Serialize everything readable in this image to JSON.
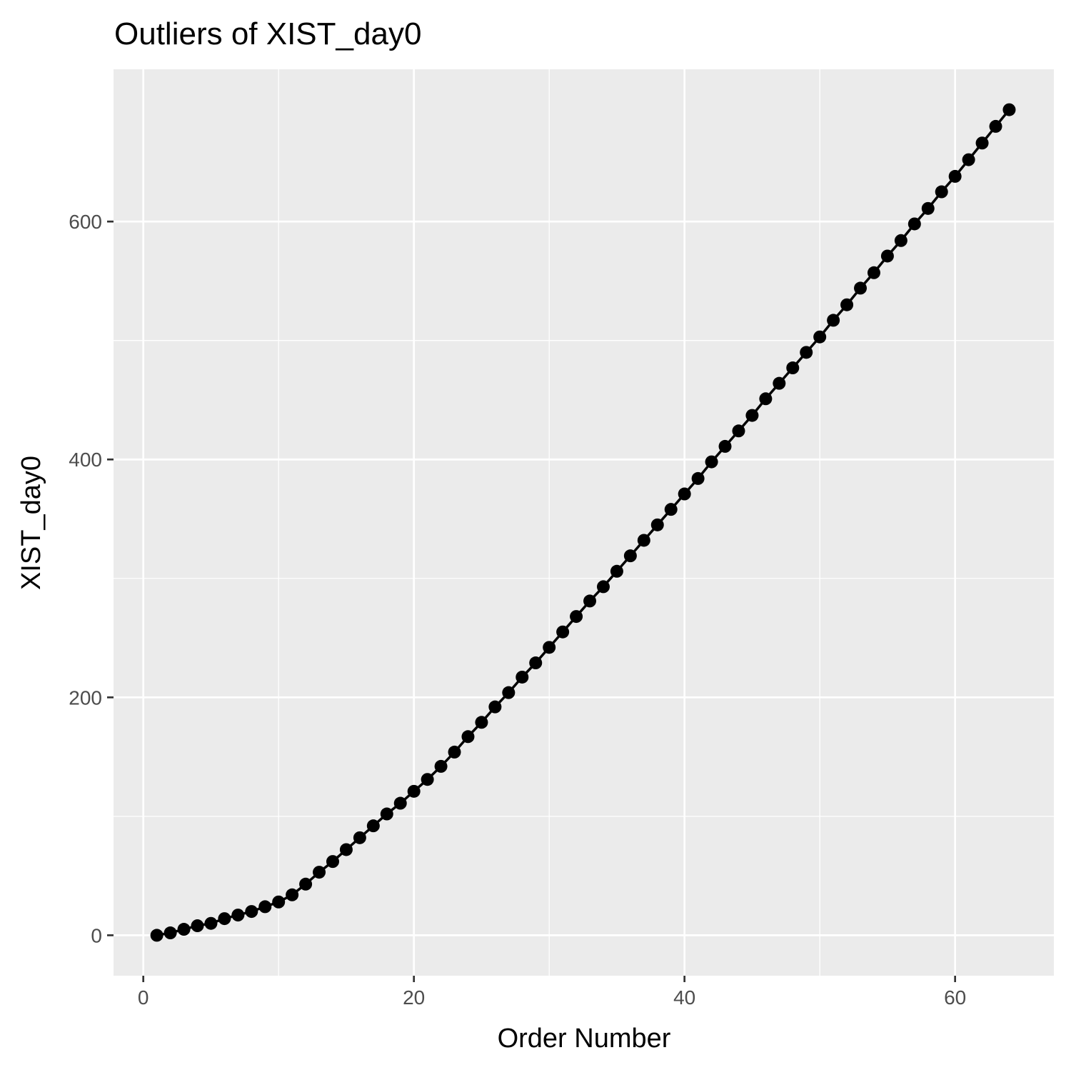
{
  "chart_data": {
    "type": "line",
    "title": "Outliers of XIST_day0",
    "x_label": "Order Number",
    "y_label": "XIST_day0",
    "x": [
      1,
      2,
      3,
      4,
      5,
      6,
      7,
      8,
      9,
      10,
      11,
      12,
      13,
      14,
      15,
      16,
      17,
      18,
      19,
      20,
      21,
      22,
      23,
      24,
      25,
      26,
      27,
      28,
      29,
      30,
      31,
      32,
      33,
      34,
      35,
      36,
      37,
      38,
      39,
      40,
      41,
      42,
      43,
      44,
      45,
      46,
      47,
      48,
      49,
      50,
      51,
      52,
      53,
      54,
      55,
      56,
      57,
      58,
      59,
      60,
      61,
      62,
      63,
      64
    ],
    "series": [
      {
        "name": "XIST_day0",
        "color": "#000000",
        "values": [
          0,
          2,
          5,
          8,
          10,
          14,
          17,
          20,
          24,
          28,
          34,
          43,
          53,
          62,
          72,
          82,
          92,
          102,
          111,
          121,
          131,
          142,
          154,
          167,
          179,
          192,
          204,
          217,
          229,
          242,
          255,
          268,
          281,
          293,
          306,
          319,
          332,
          345,
          358,
          371,
          384,
          398,
          411,
          424,
          437,
          451,
          464,
          477,
          490,
          503,
          517,
          530,
          544,
          557,
          571,
          584,
          598,
          611,
          625,
          638,
          652,
          666,
          680,
          694
        ]
      }
    ],
    "xlim": [
      -2.2,
      67.3
    ],
    "ylim": [
      -34,
      728
    ],
    "xticks": [
      0,
      20,
      40,
      60
    ],
    "yticks": [
      0,
      200,
      400,
      600
    ],
    "x_minor_grid": [
      10,
      30,
      50
    ],
    "y_minor_grid": [
      100,
      300,
      500
    ],
    "grid": true,
    "panel_color": "#ebebeb",
    "grid_color": "#ffffff"
  }
}
